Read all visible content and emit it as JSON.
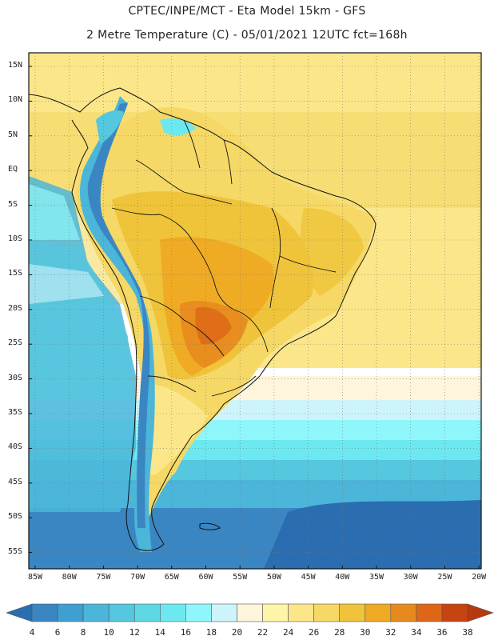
{
  "title_line1": "CPTEC/INPE/MCT -  Eta Model 15km - GFS",
  "title_line2": "2 Metre Temperature (C) - 05/01/2021 12UTC fct=168h",
  "map": {
    "variable": "2 Metre Temperature",
    "units": "C",
    "lat_labels": [
      "15N",
      "10N",
      "5N",
      "EQ",
      "5S",
      "10S",
      "15S",
      "20S",
      "25S",
      "30S",
      "35S",
      "40S",
      "45S",
      "50S",
      "55S"
    ],
    "lon_labels": [
      "85W",
      "80W",
      "75W",
      "70W",
      "65W",
      "60W",
      "55W",
      "50W",
      "45W",
      "40W",
      "35W",
      "30W",
      "25W",
      "20W"
    ]
  },
  "colorbar": {
    "ticks": [
      "4",
      "6",
      "8",
      "10",
      "12",
      "14",
      "16",
      "18",
      "20",
      "22",
      "24",
      "26",
      "28",
      "30",
      "32",
      "34",
      "36",
      "38"
    ],
    "colors": [
      "#2a6db0",
      "#3a86c2",
      "#3f9fd0",
      "#4bb6d9",
      "#55c7df",
      "#5fd8e6",
      "#6ce9f0",
      "#8ff7fb",
      "#cef4fb",
      "#fff5dc",
      "#fff5a8",
      "#fbe68a",
      "#f5d866",
      "#f0c43a",
      "#f0a922",
      "#e78a1e",
      "#dd6716",
      "#c74310",
      "#b53a0e"
    ]
  }
}
